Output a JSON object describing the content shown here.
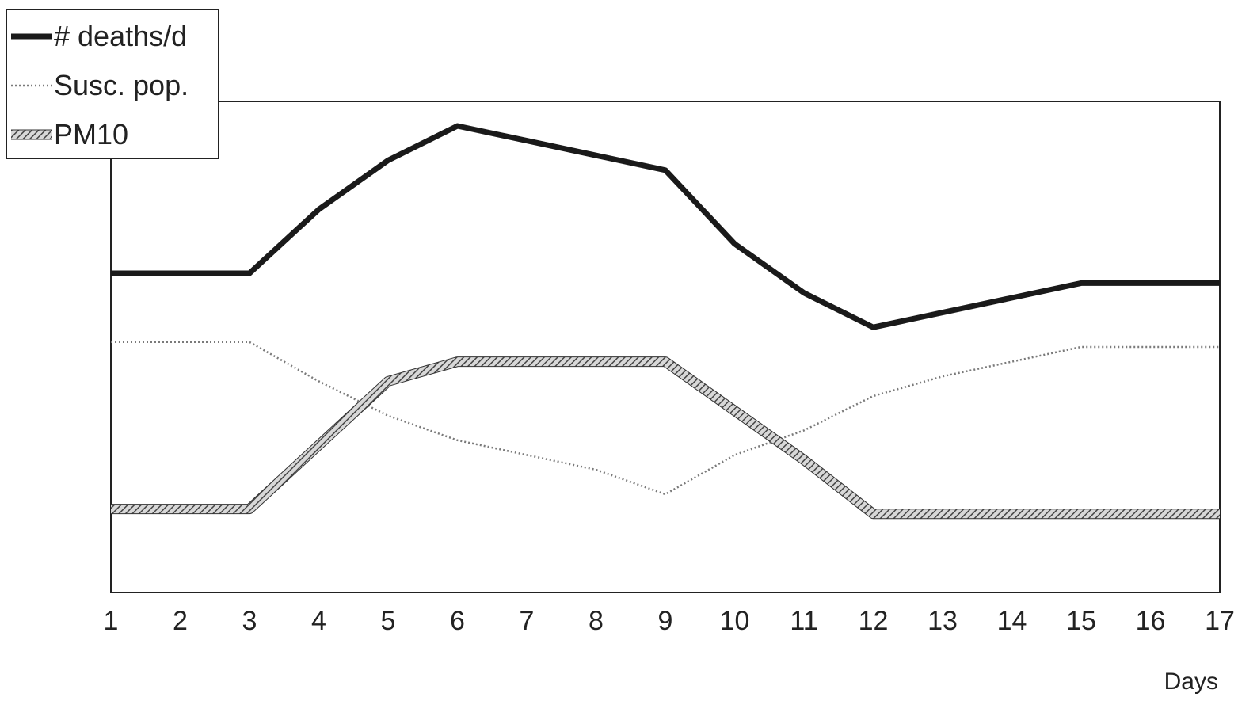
{
  "chart_data": {
    "type": "line",
    "title": "",
    "xlabel": "Days",
    "ylabel": "",
    "x": [
      1,
      2,
      3,
      4,
      5,
      6,
      7,
      8,
      9,
      10,
      11,
      12,
      13,
      14,
      15,
      16,
      17
    ],
    "xlim": [
      1,
      17
    ],
    "ylim": [
      0,
      100
    ],
    "grid": false,
    "legend_position": "top-left",
    "series": [
      {
        "name": "# deaths/d",
        "style": "thick-solid",
        "color": "#1a1a1a",
        "values": [
          65,
          65,
          65,
          78,
          88,
          95,
          92,
          89,
          86,
          71,
          61,
          54,
          57,
          60,
          63,
          63,
          63
        ]
      },
      {
        "name": "Susc. pop.",
        "style": "thin-dotted",
        "color": "#7a7a7a",
        "values": [
          51,
          51,
          51,
          43,
          36,
          31,
          28,
          25,
          20,
          28,
          33,
          40,
          44,
          47,
          50,
          50,
          50
        ]
      },
      {
        "name": "PM10",
        "style": "thick-hatched",
        "color": "#555555",
        "values": [
          17,
          17,
          17,
          30,
          43,
          47,
          47,
          47,
          47,
          37,
          27,
          16,
          16,
          16,
          16,
          16,
          16
        ]
      }
    ]
  }
}
